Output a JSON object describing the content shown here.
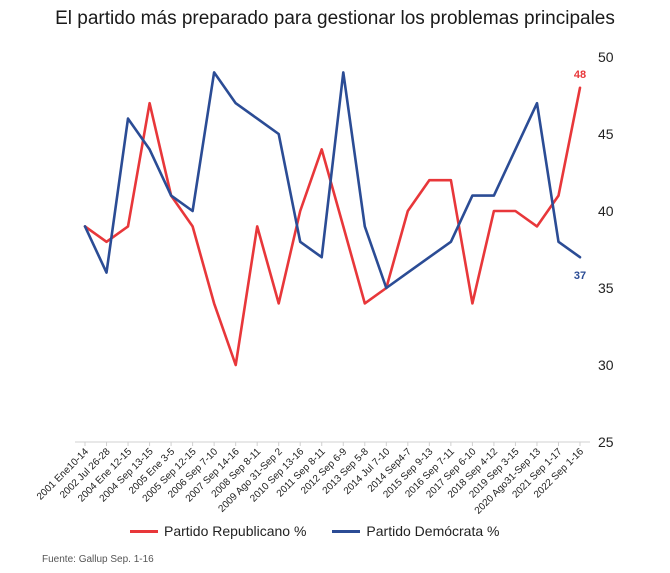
{
  "chart_data": {
    "type": "line",
    "title": "El partido más preparado para gestionar los problemas principales",
    "categories": [
      "2001 Ene10-14",
      "2002 Jul 26-28",
      "2004 Ene 12-15",
      "2004 Sep 13-15",
      "2005 Ene 3-5",
      "2005 Sep 12-15",
      "2006 Sep 7-10",
      "2007 Sep 14-16",
      "2008 Sep 8-11",
      "2009 Ago 31-Sep 2",
      "2010 Sep 13-16",
      "2011 Sep 8-11",
      "2012 Sep 6-9",
      "2013 Sep 5-8",
      "2014 Jul 7-10",
      "2014 Sep4-7",
      "2015 Sep 9-13",
      "2016 Sep 7-11",
      "2017 Sep 6-10",
      "2018 Sep 4-12",
      "2019 Sep 3-15",
      "2020 Ago31-Sep 13",
      "2021 Sep 1-17",
      "2022 Sep 1-16"
    ],
    "series": [
      {
        "name": "Partido Republicano %",
        "color": "#e8373a",
        "values": [
          39,
          38,
          39,
          47,
          41,
          39,
          34,
          30,
          39,
          34,
          40,
          44,
          39,
          34,
          35,
          40,
          42,
          42,
          34,
          40,
          40,
          39,
          41,
          48
        ]
      },
      {
        "name": "Partido Demócrata %",
        "color": "#2b4c95",
        "values": [
          39,
          36,
          46,
          44,
          41,
          40,
          49,
          47,
          46,
          45,
          38,
          37,
          49,
          39,
          35,
          36,
          37,
          38,
          41,
          41,
          44,
          47,
          38,
          37
        ]
      }
    ],
    "end_labels": [
      "48",
      "37"
    ],
    "ylim": [
      25,
      50
    ],
    "yticks": [
      25,
      30,
      35,
      40,
      45,
      50
    ],
    "y_axis_position": "right",
    "grid": false,
    "legend_position": "bottom"
  },
  "source": "Fuente: Gallup Sep. 1-16"
}
